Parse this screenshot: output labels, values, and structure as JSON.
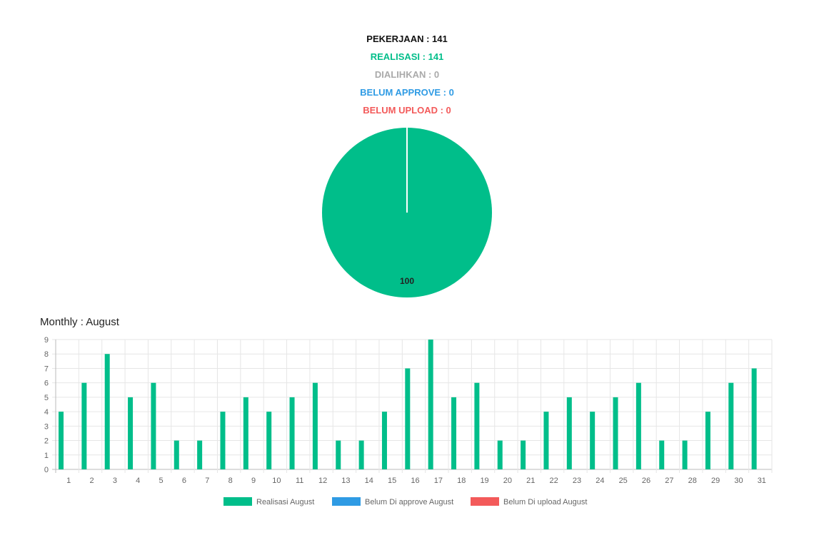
{
  "summary": [
    {
      "text": "PEKERJAAN : 141",
      "color": "#111111"
    },
    {
      "text": "REALISASI : 141",
      "color": "#00be8a"
    },
    {
      "text": "DIALIHKAN : 0",
      "color": "#aaaaaa"
    },
    {
      "text": "BELUM APPROVE : 0",
      "color": "#2f9be4"
    },
    {
      "text": "BELUM UPLOAD : 0",
      "color": "#f35a5a"
    }
  ],
  "monthly_title": "Monthly : August",
  "chart_data": [
    {
      "type": "pie",
      "slices": [
        {
          "name": "REALISASI",
          "value": 100,
          "color": "#00be8a"
        }
      ],
      "data_labels": [
        "100"
      ]
    },
    {
      "type": "bar",
      "categories": [
        "1",
        "2",
        "3",
        "4",
        "5",
        "6",
        "7",
        "8",
        "9",
        "10",
        "11",
        "12",
        "13",
        "14",
        "15",
        "16",
        "17",
        "18",
        "19",
        "20",
        "21",
        "22",
        "23",
        "24",
        "25",
        "26",
        "27",
        "28",
        "29",
        "30",
        "31"
      ],
      "series": [
        {
          "name": "Realisasi August",
          "color": "#00be8a",
          "values": [
            4,
            6,
            8,
            5,
            6,
            2,
            2,
            4,
            5,
            4,
            5,
            6,
            2,
            2,
            4,
            7,
            9,
            5,
            6,
            2,
            2,
            4,
            5,
            4,
            5,
            6,
            2,
            2,
            4,
            6,
            7
          ]
        },
        {
          "name": "Belum Di approve August",
          "color": "#2f9be4",
          "values": [
            0,
            0,
            0,
            0,
            0,
            0,
            0,
            0,
            0,
            0,
            0,
            0,
            0,
            0,
            0,
            0,
            0,
            0,
            0,
            0,
            0,
            0,
            0,
            0,
            0,
            0,
            0,
            0,
            0,
            0,
            0
          ]
        },
        {
          "name": "Belum Di upload August",
          "color": "#f35a5a",
          "values": [
            0,
            0,
            0,
            0,
            0,
            0,
            0,
            0,
            0,
            0,
            0,
            0,
            0,
            0,
            0,
            0,
            0,
            0,
            0,
            0,
            0,
            0,
            0,
            0,
            0,
            0,
            0,
            0,
            0,
            0,
            0
          ]
        }
      ],
      "ylim": [
        0,
        9
      ],
      "yticks": [
        "0",
        "1",
        "2",
        "3",
        "4",
        "5",
        "6",
        "7",
        "8",
        "9"
      ],
      "grid": true,
      "legend": "bottom"
    }
  ]
}
